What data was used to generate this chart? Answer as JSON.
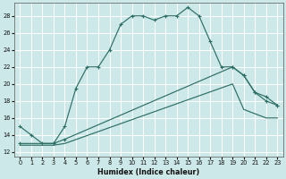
{
  "xlabel": "Humidex (Indice chaleur)",
  "bg_color": "#cce8e8",
  "grid_color": "#ffffff",
  "line_color": "#2d6e65",
  "xlim": [
    -0.5,
    23.5
  ],
  "ylim": [
    11.5,
    29.5
  ],
  "xticks": [
    0,
    1,
    2,
    3,
    4,
    5,
    6,
    7,
    8,
    9,
    10,
    11,
    12,
    13,
    14,
    15,
    16,
    17,
    18,
    19,
    20,
    21,
    22,
    23
  ],
  "yticks": [
    12,
    14,
    16,
    18,
    20,
    22,
    24,
    26,
    28
  ],
  "curve1_x": [
    0,
    1,
    2,
    3,
    4,
    5,
    6,
    7,
    8,
    9,
    10,
    11,
    12,
    13,
    14,
    15,
    16,
    17,
    18,
    19,
    20,
    21,
    22,
    23
  ],
  "curve1_y": [
    15,
    14,
    13,
    13,
    15,
    19.5,
    22,
    22,
    24,
    27,
    28,
    28,
    27.5,
    28,
    28,
    29,
    28,
    25,
    22,
    22,
    21,
    19,
    18,
    17.5
  ],
  "curve2_x": [
    0,
    3,
    4,
    19,
    20,
    21,
    22,
    23
  ],
  "curve2_y": [
    13.0,
    13.0,
    13.5,
    22.0,
    21.0,
    19.0,
    18.5,
    17.5
  ],
  "curve3_x": [
    0,
    3,
    4,
    19,
    20,
    21,
    22,
    23
  ],
  "curve3_y": [
    12.8,
    12.8,
    13.0,
    20.0,
    17.0,
    16.5,
    16.0,
    16.0
  ]
}
